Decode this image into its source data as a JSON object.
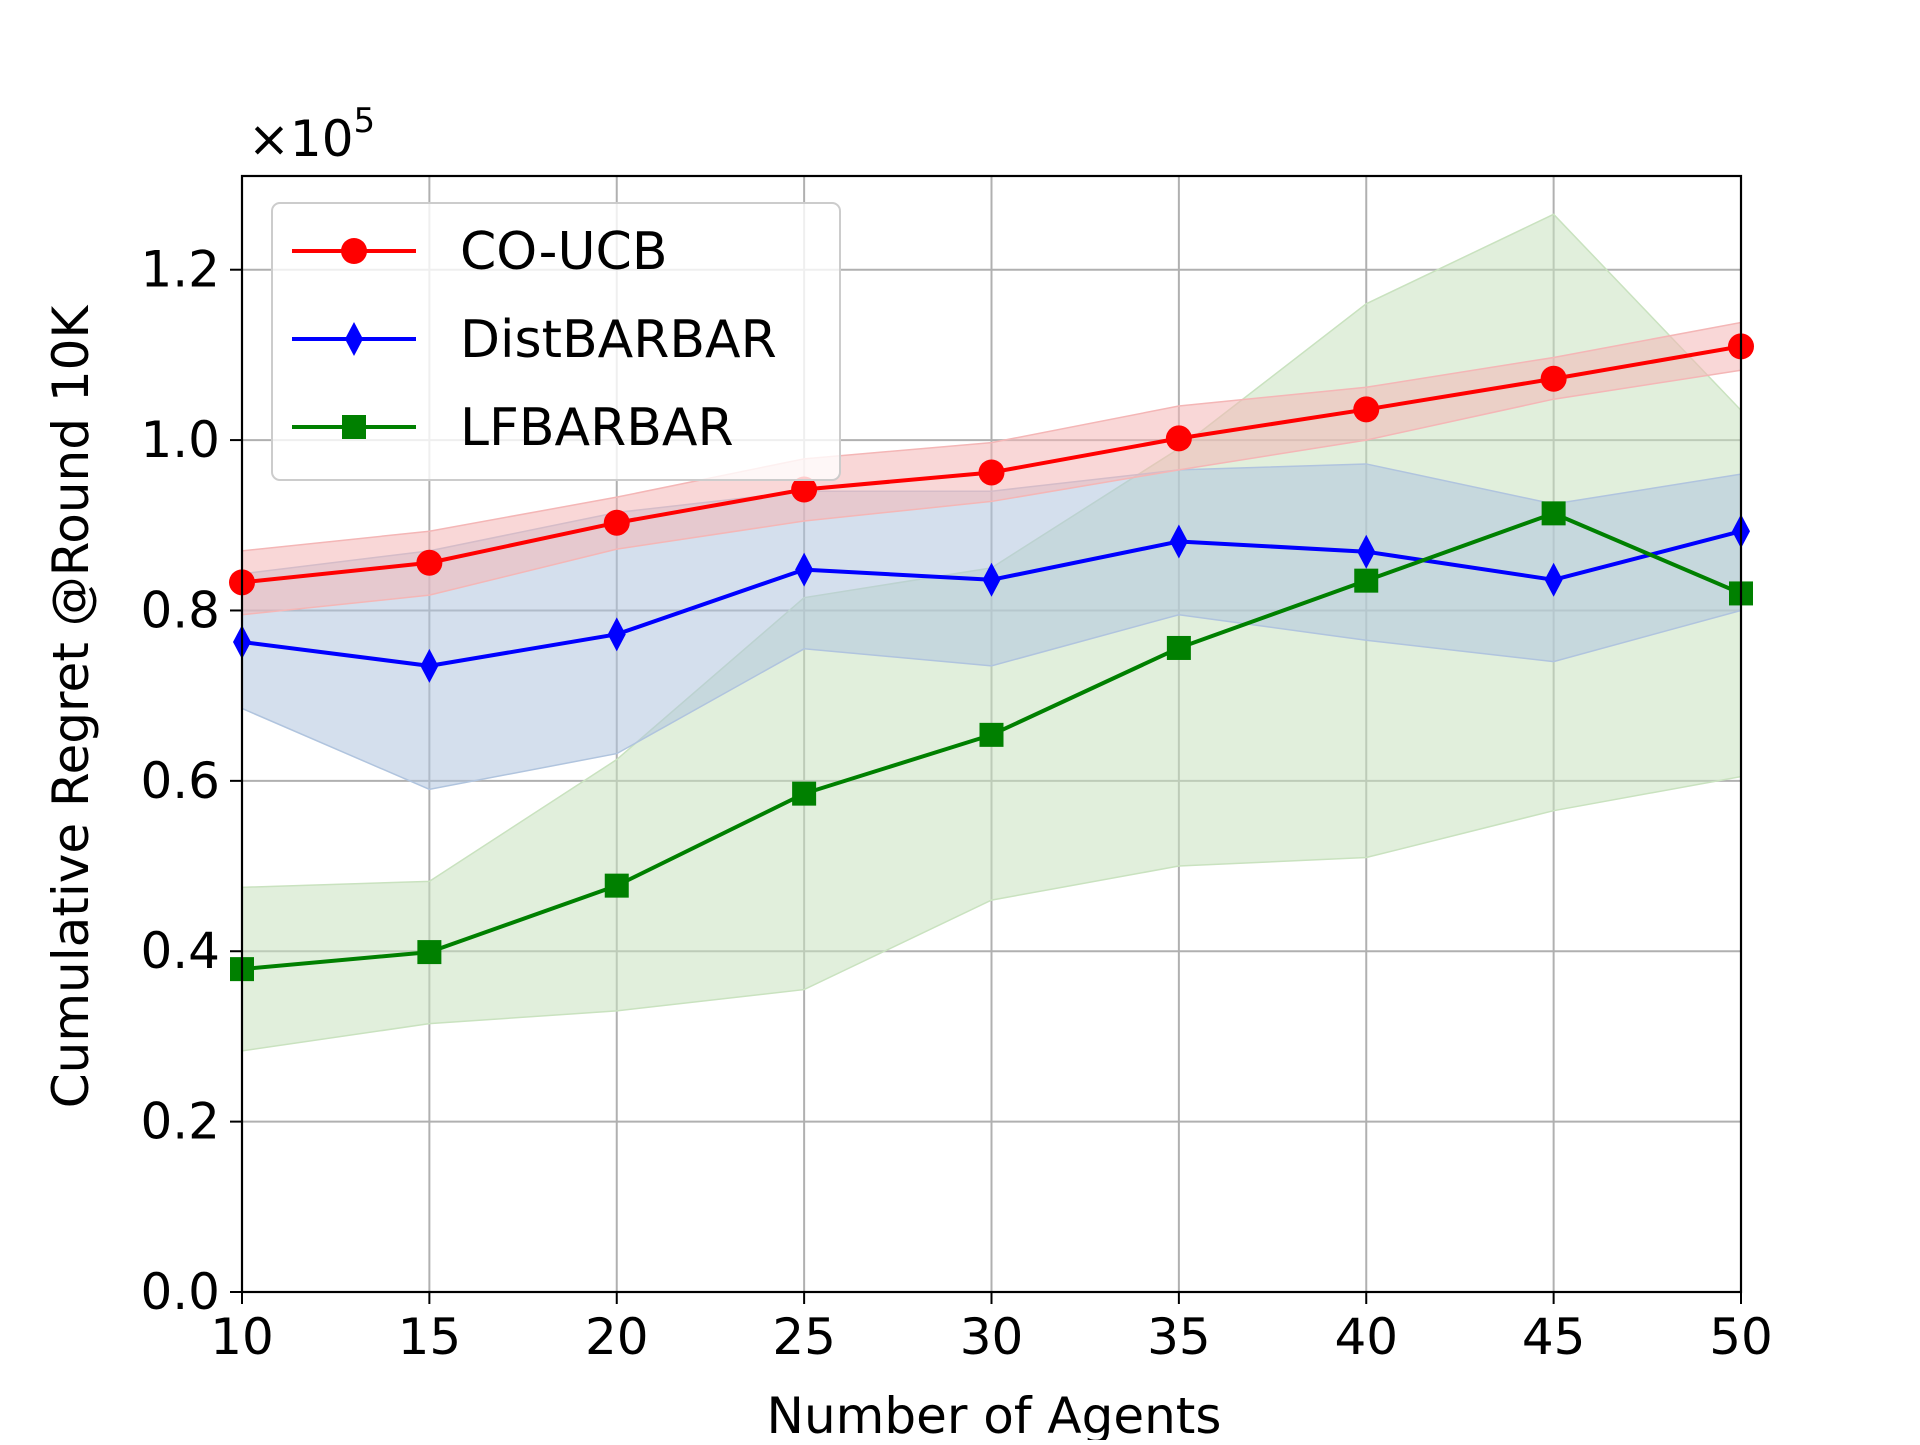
{
  "chart_data": {
    "type": "line",
    "xlabel": "Number of Agents",
    "ylabel": "Cumulative Regret @Round 10K",
    "y_multiplier_label": "×10",
    "y_multiplier_exponent": "5",
    "xlim": [
      10,
      50
    ],
    "ylim": [
      0.0,
      1.31
    ],
    "x_ticks": [
      "10",
      "15",
      "20",
      "25",
      "30",
      "35",
      "40",
      "45",
      "50"
    ],
    "y_ticks": [
      "0.0",
      "0.2",
      "0.4",
      "0.6",
      "0.8",
      "1.0",
      "1.2"
    ],
    "grid": true,
    "legend_position": "top-left",
    "x": [
      10,
      15,
      20,
      25,
      30,
      35,
      40,
      45,
      50
    ],
    "series": [
      {
        "name": "CO-UCB",
        "color": "#ff0000",
        "band_color": "#f4b6b6",
        "marker": "circle",
        "values": [
          0.833,
          0.856,
          0.903,
          0.942,
          0.962,
          1.002,
          1.036,
          1.072,
          1.11
        ],
        "lower": [
          0.795,
          0.818,
          0.872,
          0.905,
          0.928,
          0.965,
          1.0,
          1.048,
          1.082
        ],
        "upper": [
          0.87,
          0.893,
          0.933,
          0.978,
          0.997,
          1.04,
          1.062,
          1.097,
          1.138
        ]
      },
      {
        "name": "DistBARBAR",
        "color": "#0000ff",
        "band_color": "#b0c4de",
        "marker": "thin_diamond",
        "values": [
          0.763,
          0.735,
          0.772,
          0.848,
          0.836,
          0.881,
          0.869,
          0.836,
          0.893
        ],
        "lower": [
          0.685,
          0.59,
          0.632,
          0.755,
          0.735,
          0.795,
          0.765,
          0.74,
          0.8
        ],
        "upper": [
          0.843,
          0.87,
          0.915,
          0.94,
          0.94,
          0.965,
          0.972,
          0.925,
          0.96
        ]
      },
      {
        "name": "LFBARBAR",
        "color": "#008000",
        "band_color": "#c9e2bf",
        "marker": "square",
        "values": [
          0.379,
          0.399,
          0.477,
          0.585,
          0.654,
          0.756,
          0.835,
          0.914,
          0.82
        ],
        "lower": [
          0.283,
          0.315,
          0.33,
          0.355,
          0.46,
          0.5,
          0.51,
          0.565,
          0.605
        ],
        "upper": [
          0.475,
          0.482,
          0.625,
          0.815,
          0.85,
          0.99,
          1.16,
          1.265,
          1.035
        ]
      }
    ]
  }
}
